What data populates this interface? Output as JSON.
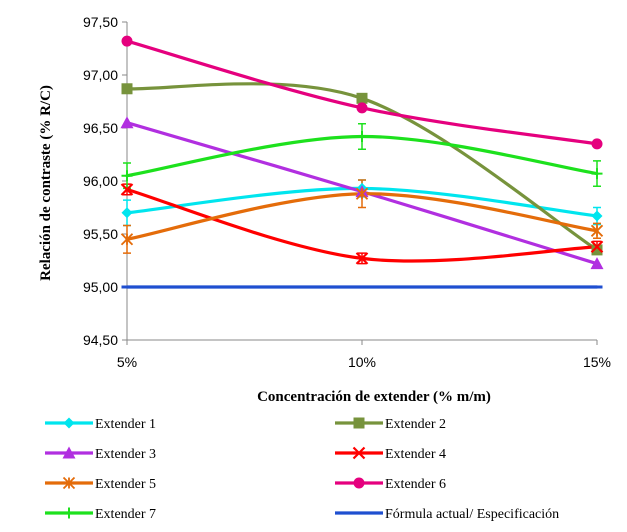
{
  "chart_data": {
    "type": "line",
    "title": "",
    "xlabel": "Concentración  de extender (% m/m)",
    "ylabel": "Relación de contraste (% R/C)",
    "categories": [
      "5%",
      "10%",
      "15%"
    ],
    "ylim": [
      94.5,
      97.5
    ],
    "yticks": [
      "94,50",
      "95,00",
      "95,50",
      "96,00",
      "96,50",
      "97,00",
      "97,50"
    ],
    "ytick_values": [
      94.5,
      95.0,
      95.5,
      96.0,
      96.5,
      97.0,
      97.5
    ],
    "grid": false,
    "legend_position": "bottom",
    "series": [
      {
        "name": "Extender 1",
        "values": [
          95.7,
          95.93,
          95.67
        ],
        "color": "#00E5EE",
        "marker": "diamond",
        "errors": [
          0.12,
          0.08,
          0.08
        ]
      },
      {
        "name": "Extender 2",
        "values": [
          96.87,
          96.78,
          95.35
        ],
        "color": "#77933C",
        "marker": "square",
        "errors": [
          0.0,
          0.0,
          0.0
        ]
      },
      {
        "name": "Extender 3",
        "values": [
          96.55,
          95.9,
          95.22
        ],
        "color": "#B12FE0",
        "marker": "triangle",
        "errors": [
          0.0,
          0.0,
          0.0
        ]
      },
      {
        "name": "Extender 4",
        "values": [
          95.92,
          95.27,
          95.38
        ],
        "color": "#FF0000",
        "marker": "x",
        "errors": [
          0.05,
          0.05,
          0.05
        ]
      },
      {
        "name": "Extender 5",
        "values": [
          95.45,
          95.88,
          95.53
        ],
        "color": "#E46C0A",
        "marker": "asterisk",
        "errors": [
          0.13,
          0.13,
          0.07
        ]
      },
      {
        "name": "Extender 6",
        "values": [
          97.32,
          96.69,
          96.35
        ],
        "color": "#E5007E",
        "marker": "circle",
        "errors": [
          0.0,
          0.0,
          0.0
        ]
      },
      {
        "name": "Extender 7",
        "values": [
          96.05,
          96.42,
          96.07
        ],
        "color": "#1DE11D",
        "marker": "plus",
        "errors": [
          0.12,
          0.12,
          0.12
        ]
      },
      {
        "name": "Fórmula actual/ Especificación",
        "values": [
          95.0,
          95.0,
          95.0
        ],
        "color": "#1F4FD0",
        "marker": "dash",
        "errors": [
          0.0,
          0.0,
          0.0
        ]
      }
    ]
  }
}
